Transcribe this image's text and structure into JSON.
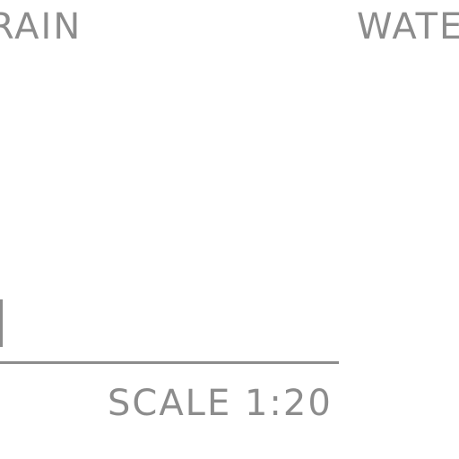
{
  "labels": {
    "top_left": "RAIN",
    "top_right": "WATE"
  },
  "scale": {
    "text": "SCALE 1:20"
  },
  "colors": {
    "ink": "#8c8c8c",
    "background": "#ffffff"
  }
}
